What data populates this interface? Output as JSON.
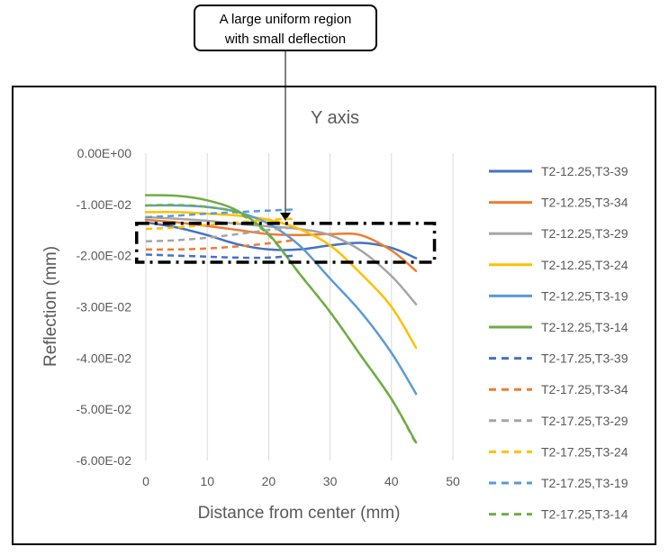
{
  "callout": {
    "line1": "A large uniform region",
    "line2": "with small deflection"
  },
  "colors": {
    "blue": "#4472C4",
    "orange": "#ED7D31",
    "gray": "#A5A5A5",
    "yellow": "#FFC000",
    "lightblue": "#5B9BD5",
    "green": "#70AD47",
    "axis_text": "#595959",
    "grid": "#D9D9D9"
  },
  "chart_data": {
    "type": "line",
    "title": "Y axis",
    "xlabel": "Distance from center (mm)",
    "ylabel": "Reflection (mm)",
    "xlim": [
      0,
      50
    ],
    "ylim": [
      -0.06,
      0
    ],
    "x_ticks": [
      0,
      10,
      20,
      30,
      40,
      50
    ],
    "x_tick_labels": [
      "0",
      "10",
      "20",
      "30",
      "40",
      "50"
    ],
    "y_ticks": [
      0,
      -0.01,
      -0.02,
      -0.03,
      -0.04,
      -0.05,
      -0.06
    ],
    "y_tick_labels": [
      "0.00E+00",
      "-1.00E-02",
      "-2.00E-02",
      "-3.00E-02",
      "-4.00E-02",
      "-5.00E-02",
      "-6.00E-02"
    ],
    "grid": "vertical",
    "legend_position": "right",
    "series": [
      {
        "name": "T2-12.25,T3-39",
        "color": "#4472C4",
        "dash": "solid",
        "points": [
          [
            0,
            -0.0135
          ],
          [
            5,
            -0.0145
          ],
          [
            10,
            -0.016
          ],
          [
            15,
            -0.0178
          ],
          [
            20,
            -0.0188
          ],
          [
            25,
            -0.0188
          ],
          [
            30,
            -0.018
          ],
          [
            35,
            -0.0175
          ],
          [
            40,
            -0.0185
          ],
          [
            44,
            -0.0205
          ]
        ]
      },
      {
        "name": "T2-12.25,T3-34",
        "color": "#ED7D31",
        "dash": "solid",
        "points": [
          [
            0,
            -0.013
          ],
          [
            5,
            -0.0135
          ],
          [
            10,
            -0.0142
          ],
          [
            15,
            -0.015
          ],
          [
            20,
            -0.0158
          ],
          [
            25,
            -0.016
          ],
          [
            30,
            -0.0158
          ],
          [
            35,
            -0.016
          ],
          [
            40,
            -0.019
          ],
          [
            44,
            -0.023
          ]
        ]
      },
      {
        "name": "T2-12.25,T3-29",
        "color": "#A5A5A5",
        "dash": "solid",
        "points": [
          [
            0,
            -0.0125
          ],
          [
            5,
            -0.0128
          ],
          [
            10,
            -0.0132
          ],
          [
            15,
            -0.0138
          ],
          [
            20,
            -0.0143
          ],
          [
            25,
            -0.0148
          ],
          [
            30,
            -0.016
          ],
          [
            35,
            -0.019
          ],
          [
            40,
            -0.024
          ],
          [
            44,
            -0.0295
          ]
        ]
      },
      {
        "name": "T2-12.25,T3-24",
        "color": "#FFC000",
        "dash": "solid",
        "points": [
          [
            0,
            -0.0115
          ],
          [
            5,
            -0.0115
          ],
          [
            10,
            -0.0118
          ],
          [
            15,
            -0.0122
          ],
          [
            20,
            -0.013
          ],
          [
            25,
            -0.0148
          ],
          [
            30,
            -0.018
          ],
          [
            35,
            -0.0235
          ],
          [
            40,
            -0.03
          ],
          [
            44,
            -0.038
          ]
        ]
      },
      {
        "name": "T2-12.25,T3-19",
        "color": "#5B9BD5",
        "dash": "solid",
        "points": [
          [
            0,
            -0.0102
          ],
          [
            5,
            -0.0102
          ],
          [
            10,
            -0.0105
          ],
          [
            15,
            -0.0115
          ],
          [
            20,
            -0.0138
          ],
          [
            25,
            -0.018
          ],
          [
            30,
            -0.0245
          ],
          [
            35,
            -0.031
          ],
          [
            40,
            -0.039
          ],
          [
            44,
            -0.047
          ]
        ]
      },
      {
        "name": "T2-12.25,T3-14",
        "color": "#70AD47",
        "dash": "solid",
        "points": [
          [
            0,
            -0.0082
          ],
          [
            5,
            -0.0083
          ],
          [
            10,
            -0.0092
          ],
          [
            15,
            -0.0113
          ],
          [
            20,
            -0.0158
          ],
          [
            25,
            -0.0235
          ],
          [
            30,
            -0.031
          ],
          [
            35,
            -0.0395
          ],
          [
            40,
            -0.048
          ],
          [
            44,
            -0.0565
          ]
        ]
      },
      {
        "name": "T2-17.25,T3-39",
        "color": "#4472C4",
        "dash": "dashed",
        "points": [
          [
            0,
            -0.0198
          ],
          [
            5,
            -0.02
          ],
          [
            10,
            -0.0202
          ],
          [
            15,
            -0.0204
          ],
          [
            20,
            -0.0204
          ],
          [
            24,
            -0.02
          ]
        ]
      },
      {
        "name": "T2-17.25,T3-34",
        "color": "#ED7D31",
        "dash": "dashed",
        "points": [
          [
            0,
            -0.0188
          ],
          [
            5,
            -0.0188
          ],
          [
            10,
            -0.0186
          ],
          [
            15,
            -0.0182
          ],
          [
            20,
            -0.0176
          ],
          [
            24,
            -0.017
          ]
        ]
      },
      {
        "name": "T2-17.25,T3-29",
        "color": "#A5A5A5",
        "dash": "dashed",
        "points": [
          [
            0,
            -0.0172
          ],
          [
            5,
            -0.017
          ],
          [
            10,
            -0.0165
          ],
          [
            15,
            -0.0158
          ],
          [
            20,
            -0.015
          ],
          [
            24,
            -0.0145
          ]
        ]
      },
      {
        "name": "T2-17.25,T3-24",
        "color": "#FFC000",
        "dash": "dashed",
        "points": [
          [
            0,
            -0.0148
          ],
          [
            5,
            -0.0145
          ],
          [
            10,
            -0.014
          ],
          [
            15,
            -0.0135
          ],
          [
            20,
            -0.013
          ],
          [
            24,
            -0.0128
          ]
        ]
      },
      {
        "name": "T2-17.25,T3-19",
        "color": "#5B9BD5",
        "dash": "dashed",
        "points": [
          [
            0,
            -0.0125
          ],
          [
            5,
            -0.0122
          ],
          [
            10,
            -0.0118
          ],
          [
            15,
            -0.0115
          ],
          [
            20,
            -0.0112
          ],
          [
            24,
            -0.011
          ]
        ]
      },
      {
        "name": "T2-17.25,T3-14",
        "color": "#70AD47",
        "dash": "dashed",
        "points": [
          [
            0,
            -0.0102
          ],
          [
            5,
            -0.0101
          ],
          [
            10,
            -0.0105
          ],
          [
            15,
            -0.0117
          ],
          [
            20,
            -0.016
          ],
          [
            25,
            -0.0235
          ],
          [
            30,
            -0.031
          ],
          [
            35,
            -0.0395
          ],
          [
            40,
            -0.048
          ],
          [
            44,
            -0.0567
          ]
        ]
      }
    ],
    "annotation": {
      "type": "dashed-box",
      "x_range": [
        -1.5,
        47
      ],
      "y_range": [
        -0.0213,
        -0.0137
      ]
    }
  }
}
